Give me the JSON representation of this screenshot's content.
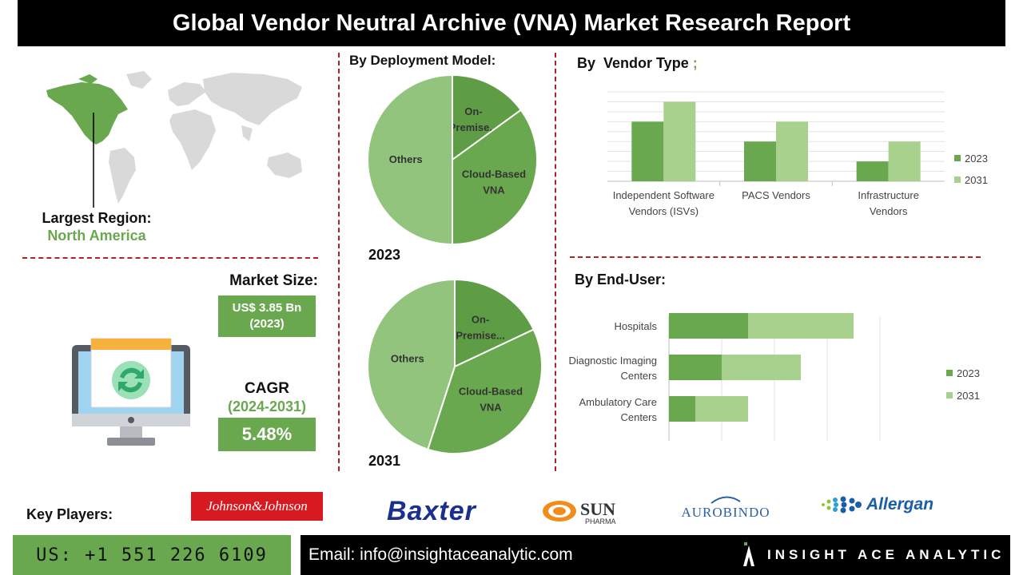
{
  "title": "Global Vendor Neutral Archive (VNA) Market Research Report",
  "region": {
    "label": "Largest Region:",
    "value": "North America"
  },
  "market_size": {
    "label": "Market Size:",
    "value_line1": "US$ 3.85 Bn",
    "value_line2": "(2023)"
  },
  "cagr": {
    "label": "CAGR",
    "period": "(2024-2031)",
    "value": "5.48%"
  },
  "deployment": {
    "heading": "By Deployment Model:",
    "year_2023": "2023",
    "year_2031": "2031"
  },
  "vendor": {
    "heading": "By  Vendor Type",
    "heading_suffix": ";"
  },
  "enduser": {
    "heading": "By End-User:"
  },
  "key_players": {
    "label": "Key Players:",
    "logos": [
      "Johnson&Johnson",
      "Baxter",
      "SUN",
      "PHARMA",
      "AUROBINDO",
      "Allergan"
    ]
  },
  "footer": {
    "phone": "US: +1 551 226 6109",
    "email": "Email: info@insightaceanalytic.com",
    "brand": "INSIGHT ACE ANALYTIC"
  },
  "colors": {
    "dark_green": "#5f9c46",
    "mid_green": "#6aa84f",
    "light_green": "#93c47d",
    "pale_green": "#a9d18e",
    "accent_red": "#b22222"
  },
  "chart_data": [
    {
      "type": "pie",
      "title": "2023",
      "slices": [
        {
          "label": "On-Premise...",
          "value": 15
        },
        {
          "label": "Cloud-Based VNA",
          "value": 35
        },
        {
          "label": "Others",
          "value": 50
        }
      ]
    },
    {
      "type": "pie",
      "title": "2031",
      "slices": [
        {
          "label": "On-Premise...",
          "value": 18
        },
        {
          "label": "Cloud-Based VNA",
          "value": 37
        },
        {
          "label": "Others",
          "value": 45
        }
      ]
    },
    {
      "type": "bar",
      "title": "By  Vendor Type",
      "categories": [
        "Independent Software Vendors (ISVs)",
        "PACS Vendors",
        "Infrastructure Vendors"
      ],
      "series": [
        {
          "name": "2023",
          "values": [
            3,
            2,
            1
          ]
        },
        {
          "name": "2031",
          "values": [
            4,
            3,
            2
          ]
        }
      ],
      "ylim": [
        0,
        4.5
      ],
      "grid": true,
      "legend": "right"
    },
    {
      "type": "bar",
      "orientation": "horizontal",
      "stacked": true,
      "title": "By End-User:",
      "categories": [
        "Hospitals",
        "Diagnostic Imaging Centers",
        "Ambulatory Care Centers"
      ],
      "series": [
        {
          "name": "2023",
          "values": [
            3,
            2,
            1
          ]
        },
        {
          "name": "2031",
          "values": [
            4,
            3,
            2
          ]
        }
      ],
      "xlim": [
        0,
        8
      ],
      "grid": true,
      "legend": "right"
    }
  ]
}
